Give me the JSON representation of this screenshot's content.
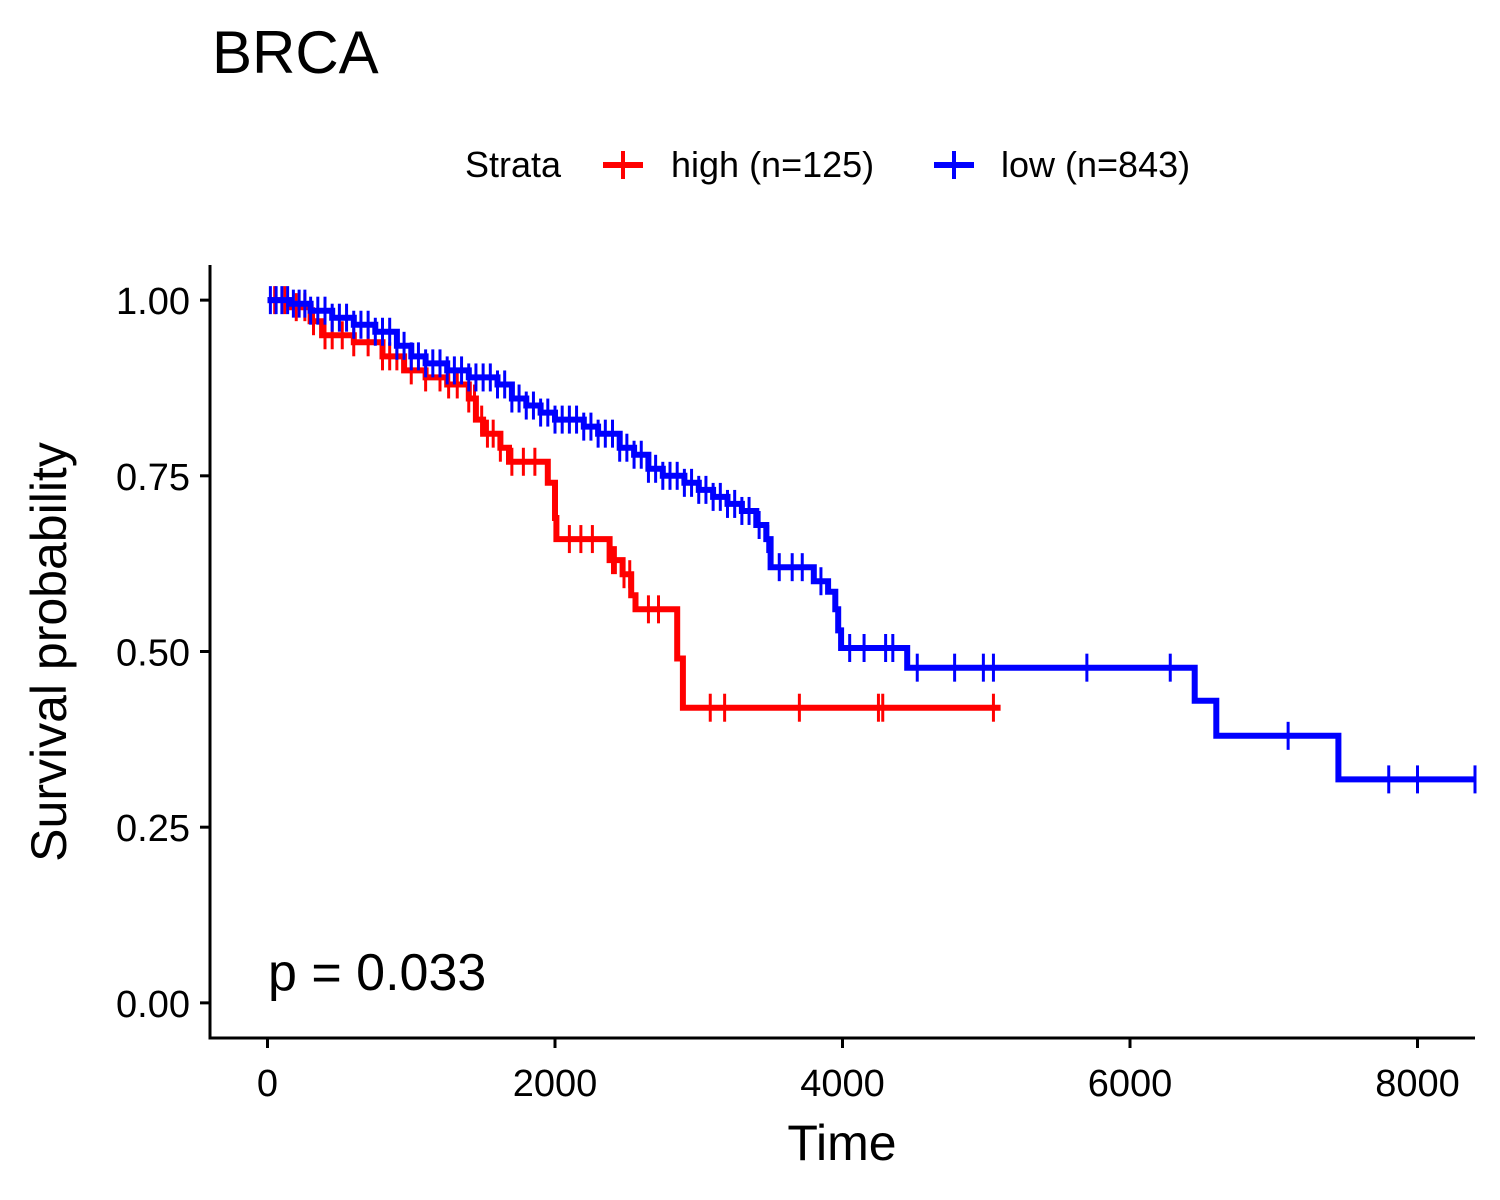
{
  "chart_data": {
    "type": "line",
    "subtype": "kaplan-meier step",
    "title": "BRCA",
    "xlabel": "Time",
    "ylabel": "Survival probability",
    "xlim": [
      -400,
      8400
    ],
    "ylim": [
      -0.05,
      1.05
    ],
    "x_ticks": [
      0,
      2000,
      4000,
      6000,
      8000
    ],
    "x_tick_labels": [
      "0",
      "2000",
      "4000",
      "6000",
      "8000"
    ],
    "y_ticks": [
      0,
      0.25,
      0.5,
      0.75,
      1.0
    ],
    "y_tick_labels": [
      "0.00",
      "0.25",
      "0.50",
      "0.75",
      "1.00"
    ],
    "grid": false,
    "legend": {
      "title": "Strata",
      "position": "top",
      "entries": [
        "high (n=125)",
        "low (n=843)"
      ]
    },
    "annotation": "p = 0.033",
    "series": [
      {
        "name": "high (n=125)",
        "color": "#ff0000",
        "steps": [
          [
            0,
            1.0
          ],
          [
            150,
            0.99
          ],
          [
            300,
            0.97
          ],
          [
            380,
            0.95
          ],
          [
            600,
            0.94
          ],
          [
            800,
            0.92
          ],
          [
            950,
            0.9
          ],
          [
            1100,
            0.89
          ],
          [
            1250,
            0.88
          ],
          [
            1400,
            0.86
          ],
          [
            1450,
            0.83
          ],
          [
            1500,
            0.81
          ],
          [
            1620,
            0.79
          ],
          [
            1680,
            0.77
          ],
          [
            1950,
            0.74
          ],
          [
            2000,
            0.69
          ],
          [
            2010,
            0.66
          ],
          [
            2380,
            0.63
          ],
          [
            2470,
            0.61
          ],
          [
            2530,
            0.58
          ],
          [
            2560,
            0.56
          ],
          [
            2850,
            0.49
          ],
          [
            2890,
            0.42
          ],
          [
            5100,
            0.42
          ]
        ],
        "censor_times": [
          50,
          120,
          200,
          260,
          320,
          400,
          450,
          520,
          600,
          700,
          800,
          850,
          900,
          1000,
          1100,
          1200,
          1260,
          1320,
          1400,
          1440,
          1490,
          1530,
          1570,
          1620,
          1700,
          1780,
          1860,
          2100,
          2180,
          2260,
          2400,
          2420,
          2480,
          2520,
          2650,
          2720,
          3080,
          3180,
          3700,
          4250,
          4280,
          5050
        ]
      },
      {
        "name": "low (n=843)",
        "color": "#0000ff",
        "steps": [
          [
            0,
            1.0
          ],
          [
            150,
            0.995
          ],
          [
            300,
            0.985
          ],
          [
            450,
            0.975
          ],
          [
            600,
            0.965
          ],
          [
            750,
            0.955
          ],
          [
            900,
            0.935
          ],
          [
            1000,
            0.92
          ],
          [
            1100,
            0.91
          ],
          [
            1250,
            0.9
          ],
          [
            1400,
            0.89
          ],
          [
            1600,
            0.88
          ],
          [
            1700,
            0.86
          ],
          [
            1800,
            0.85
          ],
          [
            1900,
            0.84
          ],
          [
            2000,
            0.83
          ],
          [
            2200,
            0.82
          ],
          [
            2300,
            0.81
          ],
          [
            2450,
            0.79
          ],
          [
            2550,
            0.78
          ],
          [
            2650,
            0.76
          ],
          [
            2750,
            0.75
          ],
          [
            2900,
            0.74
          ],
          [
            3000,
            0.73
          ],
          [
            3100,
            0.72
          ],
          [
            3200,
            0.71
          ],
          [
            3300,
            0.7
          ],
          [
            3400,
            0.68
          ],
          [
            3470,
            0.66
          ],
          [
            3500,
            0.62
          ],
          [
            3800,
            0.6
          ],
          [
            3900,
            0.585
          ],
          [
            3950,
            0.56
          ],
          [
            3970,
            0.53
          ],
          [
            3990,
            0.505
          ],
          [
            4450,
            0.477
          ],
          [
            6450,
            0.43
          ],
          [
            6600,
            0.38
          ],
          [
            7450,
            0.318
          ],
          [
            8400,
            0.318
          ]
        ],
        "censor_times": [
          20,
          60,
          100,
          140,
          180,
          220,
          260,
          300,
          350,
          400,
          450,
          500,
          550,
          600,
          650,
          700,
          750,
          800,
          850,
          900,
          950,
          1000,
          1050,
          1100,
          1150,
          1200,
          1250,
          1300,
          1350,
          1400,
          1450,
          1500,
          1550,
          1600,
          1650,
          1700,
          1750,
          1800,
          1850,
          1900,
          1950,
          2000,
          2050,
          2100,
          2150,
          2200,
          2250,
          2300,
          2350,
          2400,
          2450,
          2500,
          2550,
          2600,
          2650,
          2700,
          2750,
          2800,
          2850,
          2900,
          2950,
          3000,
          3050,
          3100,
          3150,
          3200,
          3250,
          3300,
          3350,
          3420,
          3480,
          3560,
          3650,
          3720,
          3850,
          4050,
          4150,
          4300,
          4350,
          4520,
          4780,
          4980,
          5050,
          5700,
          6280,
          7100,
          7800,
          8000,
          8400
        ]
      }
    ]
  }
}
